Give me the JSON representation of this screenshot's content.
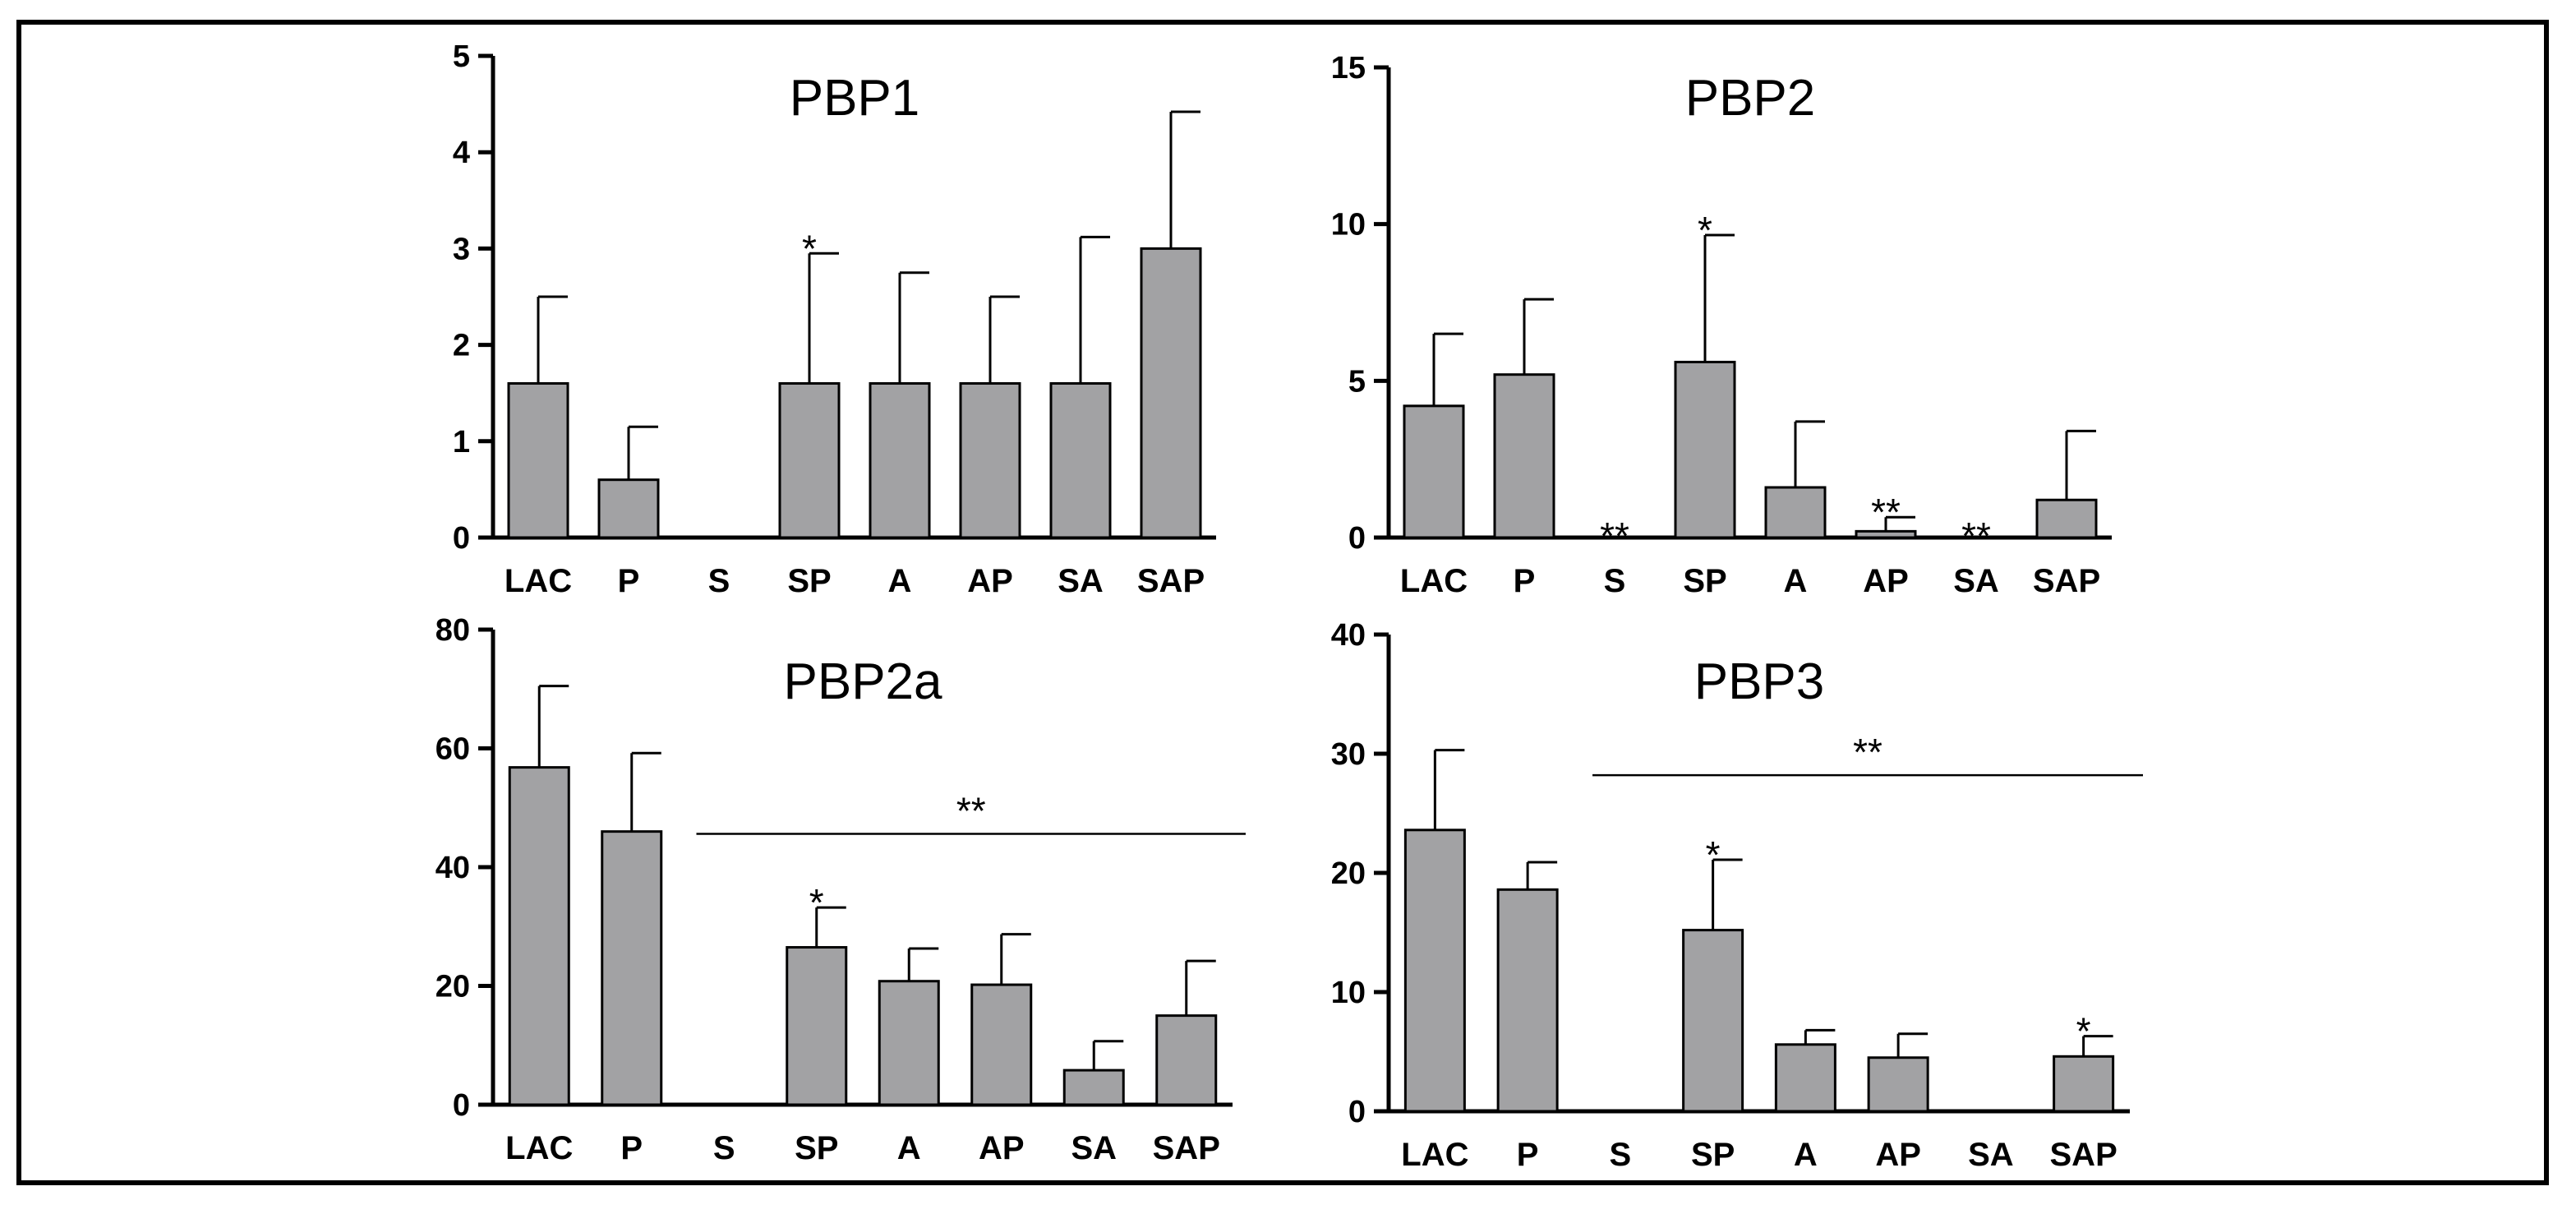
{
  "chart_data": [
    {
      "type": "bar",
      "title": "PBP1",
      "categories": [
        "LAC",
        "P",
        "S",
        "SP",
        "A",
        "AP",
        "SA",
        "SAP"
      ],
      "values": [
        1.6,
        0.6,
        0,
        1.6,
        1.6,
        1.6,
        1.6,
        3.0
      ],
      "error_upper": [
        2.5,
        1.15,
        0,
        2.95,
        2.75,
        2.5,
        3.12,
        4.42
      ],
      "ylim": [
        0,
        5
      ],
      "yticks": [
        0,
        1,
        2,
        3,
        4,
        5
      ],
      "annotations": [
        {
          "category": "SP",
          "text": "*"
        }
      ],
      "group_annotation": null,
      "bar_color": "#a2a2a4"
    },
    {
      "type": "bar",
      "title": "PBP2",
      "categories": [
        "LAC",
        "P",
        "S",
        "SP",
        "A",
        "AP",
        "SA",
        "SAP"
      ],
      "values": [
        4.2,
        5.2,
        0,
        5.6,
        1.6,
        0.2,
        0,
        1.2
      ],
      "error_upper": [
        6.5,
        7.6,
        0,
        9.65,
        3.7,
        0.65,
        0,
        3.4
      ],
      "ylim": [
        0,
        15
      ],
      "yticks": [
        0,
        5,
        10,
        15
      ],
      "annotations": [
        {
          "category": "S",
          "text": "**"
        },
        {
          "category": "SP",
          "text": "*"
        },
        {
          "category": "AP",
          "text": "**"
        },
        {
          "category": "SA",
          "text": "**"
        }
      ],
      "group_annotation": null,
      "bar_color": "#a2a2a4"
    },
    {
      "type": "bar",
      "title": "PBP2a",
      "categories": [
        "LAC",
        "P",
        "S",
        "SP",
        "A",
        "AP",
        "SA",
        "SAP"
      ],
      "values": [
        56.8,
        46,
        0,
        26.5,
        20.8,
        20.2,
        5.8,
        15
      ],
      "error_upper": [
        70.5,
        59.2,
        0,
        33.2,
        26.3,
        28.7,
        10.7,
        24.2
      ],
      "ylim": [
        0,
        80
      ],
      "yticks": [
        0,
        20,
        40,
        60,
        80
      ],
      "annotations": [
        {
          "category": "SP",
          "text": "*"
        }
      ],
      "group_annotation": {
        "from": "S",
        "to": "SAP",
        "y": 45.6,
        "text": "**"
      },
      "bar_color": "#a2a2a4"
    },
    {
      "type": "bar",
      "title": "PBP3",
      "categories": [
        "LAC",
        "P",
        "S",
        "SP",
        "A",
        "AP",
        "SA",
        "SAP"
      ],
      "values": [
        23.6,
        18.6,
        0,
        15.2,
        5.6,
        4.5,
        0,
        4.6
      ],
      "error_upper": [
        30.3,
        20.9,
        0,
        21.1,
        6.8,
        6.5,
        0,
        6.3
      ],
      "ylim": [
        0,
        40
      ],
      "yticks": [
        0,
        10,
        20,
        30,
        40
      ],
      "annotations": [
        {
          "category": "SP",
          "text": "*"
        },
        {
          "category": "SAP",
          "text": "*"
        }
      ],
      "group_annotation": {
        "from": "S",
        "to": "SAP",
        "y": 28.2,
        "text": "**"
      },
      "bar_color": "#a2a2a4"
    }
  ]
}
